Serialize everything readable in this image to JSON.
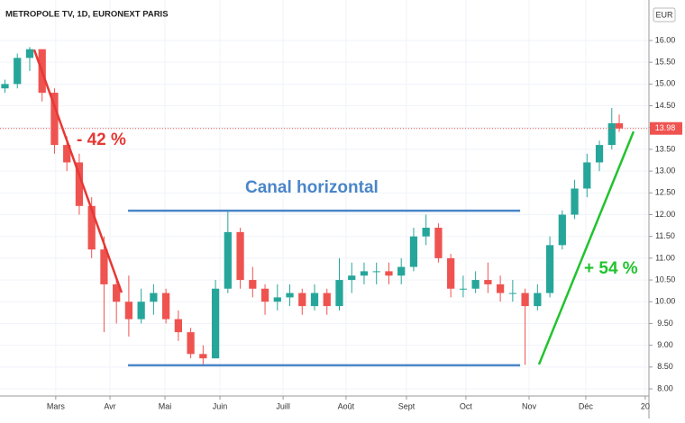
{
  "chart_data": {
    "type": "candlestick",
    "title": "METROPOLE TV, 1D, EURONEXT PARIS",
    "currency": "EUR",
    "x": [
      0,
      5,
      10,
      15,
      20,
      25,
      30,
      35,
      40,
      45,
      50,
      55,
      60,
      65,
      70,
      75,
      80,
      85,
      90,
      95,
      100,
      105,
      110,
      115,
      120,
      125,
      130,
      135,
      140,
      145,
      150,
      155,
      160,
      165,
      170,
      175,
      180,
      185,
      190,
      195,
      200,
      205,
      210,
      215,
      220,
      225,
      230,
      235,
      240,
      245,
      248
    ],
    "open": [
      14.9,
      15.0,
      15.6,
      15.8,
      14.8,
      13.6,
      13.2,
      12.2,
      11.2,
      10.4,
      10.0,
      9.6,
      10.0,
      10.2,
      9.6,
      9.3,
      8.8,
      8.7,
      10.3,
      11.6,
      10.5,
      10.3,
      10.0,
      10.1,
      10.2,
      9.9,
      10.2,
      9.9,
      10.5,
      10.6,
      10.7,
      10.7,
      10.6,
      10.8,
      11.5,
      11.7,
      11.0,
      10.3,
      10.3,
      10.5,
      10.4,
      10.2,
      10.2,
      9.9,
      10.2,
      11.3,
      12.0,
      12.6,
      13.2,
      13.6,
      14.1
    ],
    "high": [
      15.1,
      15.7,
      15.85,
      15.8,
      14.9,
      13.8,
      13.4,
      12.4,
      11.5,
      10.6,
      10.6,
      10.3,
      10.4,
      10.3,
      9.8,
      9.4,
      9.0,
      10.5,
      12.1,
      11.7,
      10.8,
      10.4,
      10.4,
      10.4,
      10.3,
      10.4,
      10.3,
      11.0,
      10.9,
      10.9,
      10.9,
      10.9,
      11.0,
      11.7,
      12.0,
      11.8,
      11.1,
      10.6,
      10.7,
      10.9,
      10.6,
      10.5,
      10.3,
      10.4,
      11.5,
      12.1,
      12.8,
      13.4,
      13.7,
      14.45,
      14.3
    ],
    "low": [
      14.8,
      14.9,
      15.3,
      14.6,
      13.4,
      13.0,
      12.0,
      11.0,
      9.3,
      9.5,
      9.2,
      9.5,
      9.7,
      9.5,
      9.1,
      8.7,
      8.55,
      8.7,
      10.2,
      10.3,
      10.1,
      9.7,
      9.8,
      9.9,
      9.7,
      9.8,
      9.7,
      9.8,
      10.2,
      10.4,
      10.4,
      10.4,
      10.4,
      10.7,
      11.3,
      10.9,
      10.1,
      10.1,
      10.2,
      10.2,
      10.0,
      10.0,
      8.55,
      9.8,
      10.1,
      11.2,
      11.9,
      12.4,
      13.0,
      13.5,
      13.9
    ],
    "close": [
      15.0,
      15.6,
      15.8,
      14.8,
      13.6,
      13.2,
      12.2,
      11.2,
      10.4,
      10.0,
      9.6,
      10.0,
      10.2,
      9.6,
      9.3,
      8.8,
      8.7,
      10.3,
      11.6,
      10.5,
      10.3,
      10.0,
      10.1,
      10.2,
      9.9,
      10.2,
      9.9,
      10.5,
      10.6,
      10.7,
      10.7,
      10.6,
      10.8,
      11.5,
      11.7,
      11.0,
      10.3,
      10.3,
      10.5,
      10.4,
      10.2,
      10.2,
      9.9,
      10.2,
      11.3,
      12.0,
      12.6,
      13.2,
      13.6,
      14.1,
      13.98
    ],
    "up_color": "#26a69a",
    "down_color": "#ef5350",
    "last_price": 13.98,
    "xlim": [
      -2,
      260
    ],
    "xticks": [
      {
        "value": 20.5,
        "label": "Mars"
      },
      {
        "value": 42.4,
        "label": "Avr"
      },
      {
        "value": 64.6,
        "label": "Mai"
      },
      {
        "value": 86.8,
        "label": "Juin"
      },
      {
        "value": 112.3,
        "label": "Juill"
      },
      {
        "value": 137.7,
        "label": "Août"
      },
      {
        "value": 162.1,
        "label": "Sept"
      },
      {
        "value": 186.1,
        "label": "Oct"
      },
      {
        "value": 211.6,
        "label": "Nov"
      },
      {
        "value": 234.5,
        "label": "Déc"
      },
      {
        "value": 258.5,
        "label": "20"
      }
    ],
    "ylim": [
      7.835,
      16.93
    ],
    "yticks": [
      {
        "value": 8,
        "label": "8.00"
      },
      {
        "value": 8.5,
        "label": "8.50"
      },
      {
        "value": 9,
        "label": "9.00"
      },
      {
        "value": 9.5,
        "label": "9.50"
      },
      {
        "value": 10,
        "label": "10.00"
      },
      {
        "value": 10.5,
        "label": "10.50"
      },
      {
        "value": 11,
        "label": "11.00"
      },
      {
        "value": 11.5,
        "label": "11.50"
      },
      {
        "value": 12,
        "label": "12.00"
      },
      {
        "value": 12.5,
        "label": "12.50"
      },
      {
        "value": 13,
        "label": "13.00"
      },
      {
        "value": 13.5,
        "label": "13.50"
      },
      {
        "value": 14,
        "label": "14.00"
      },
      {
        "value": 14.5,
        "label": "14.50"
      },
      {
        "value": 15,
        "label": "15.00"
      },
      {
        "value": 15.5,
        "label": "15.50"
      },
      {
        "value": 16,
        "label": "16.00"
      }
    ],
    "grid": true,
    "lines": [
      {
        "color": "#e53935",
        "x": [
          11.8,
          47.1
        ],
        "y": [
          15.79,
          10.21
        ]
      },
      {
        "color": "#4a86c8",
        "x": [
          49.7,
          208
        ],
        "y": [
          12.09,
          12.09
        ]
      },
      {
        "color": "#4a86c8",
        "x": [
          49.7,
          208
        ],
        "y": [
          8.54,
          8.54
        ]
      },
      {
        "color": "#22c32e",
        "x": [
          215.6,
          253.8
        ],
        "y": [
          8.56,
          13.91
        ]
      }
    ],
    "annotations": [
      "- 42 %",
      "Canal horizontal",
      "+ 54 %"
    ]
  }
}
